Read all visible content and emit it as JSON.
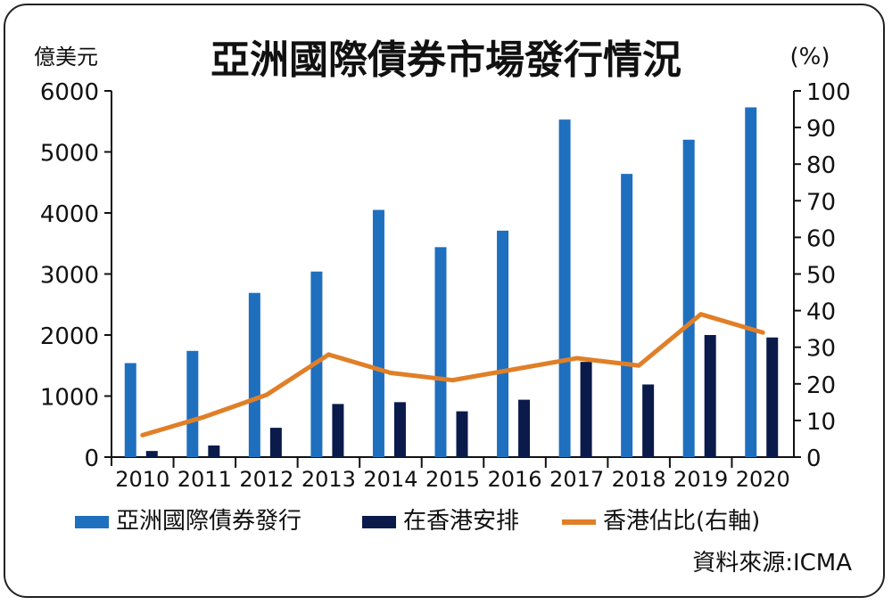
{
  "chart_data": {
    "type": "bar",
    "title": "亞洲國際債券市場發行情況",
    "left_unit": "億美元",
    "right_unit": "(%)",
    "categories": [
      "2010",
      "2011",
      "2012",
      "2013",
      "2014",
      "2015",
      "2016",
      "2017",
      "2018",
      "2019",
      "2020"
    ],
    "ylim_left": [
      0,
      6000
    ],
    "yticks_left": [
      "0",
      "1000",
      "2000",
      "3000",
      "4000",
      "5000",
      "6000"
    ],
    "ylim_right": [
      0,
      100
    ],
    "yticks_right": [
      "0",
      "10",
      "20",
      "30",
      "40",
      "50",
      "60",
      "70",
      "80",
      "90",
      "100"
    ],
    "series": [
      {
        "name": "亞洲國際債券發行",
        "type": "bar",
        "axis": "left",
        "color": "#1f6fbf",
        "values": [
          1540,
          1740,
          2690,
          3040,
          4050,
          3440,
          3710,
          5530,
          4640,
          5200,
          5730
        ]
      },
      {
        "name": "在香港安排",
        "type": "bar",
        "axis": "left",
        "color": "#0a1a4a",
        "values": [
          100,
          190,
          480,
          870,
          900,
          750,
          940,
          1560,
          1190,
          2000,
          1960
        ]
      },
      {
        "name": "香港佔比(右軸)",
        "type": "line",
        "axis": "right",
        "color": "#e07f28",
        "values": [
          6,
          11,
          17,
          28,
          23,
          21,
          24,
          27,
          25,
          39,
          34
        ]
      }
    ],
    "source": "資料來源:ICMA"
  }
}
